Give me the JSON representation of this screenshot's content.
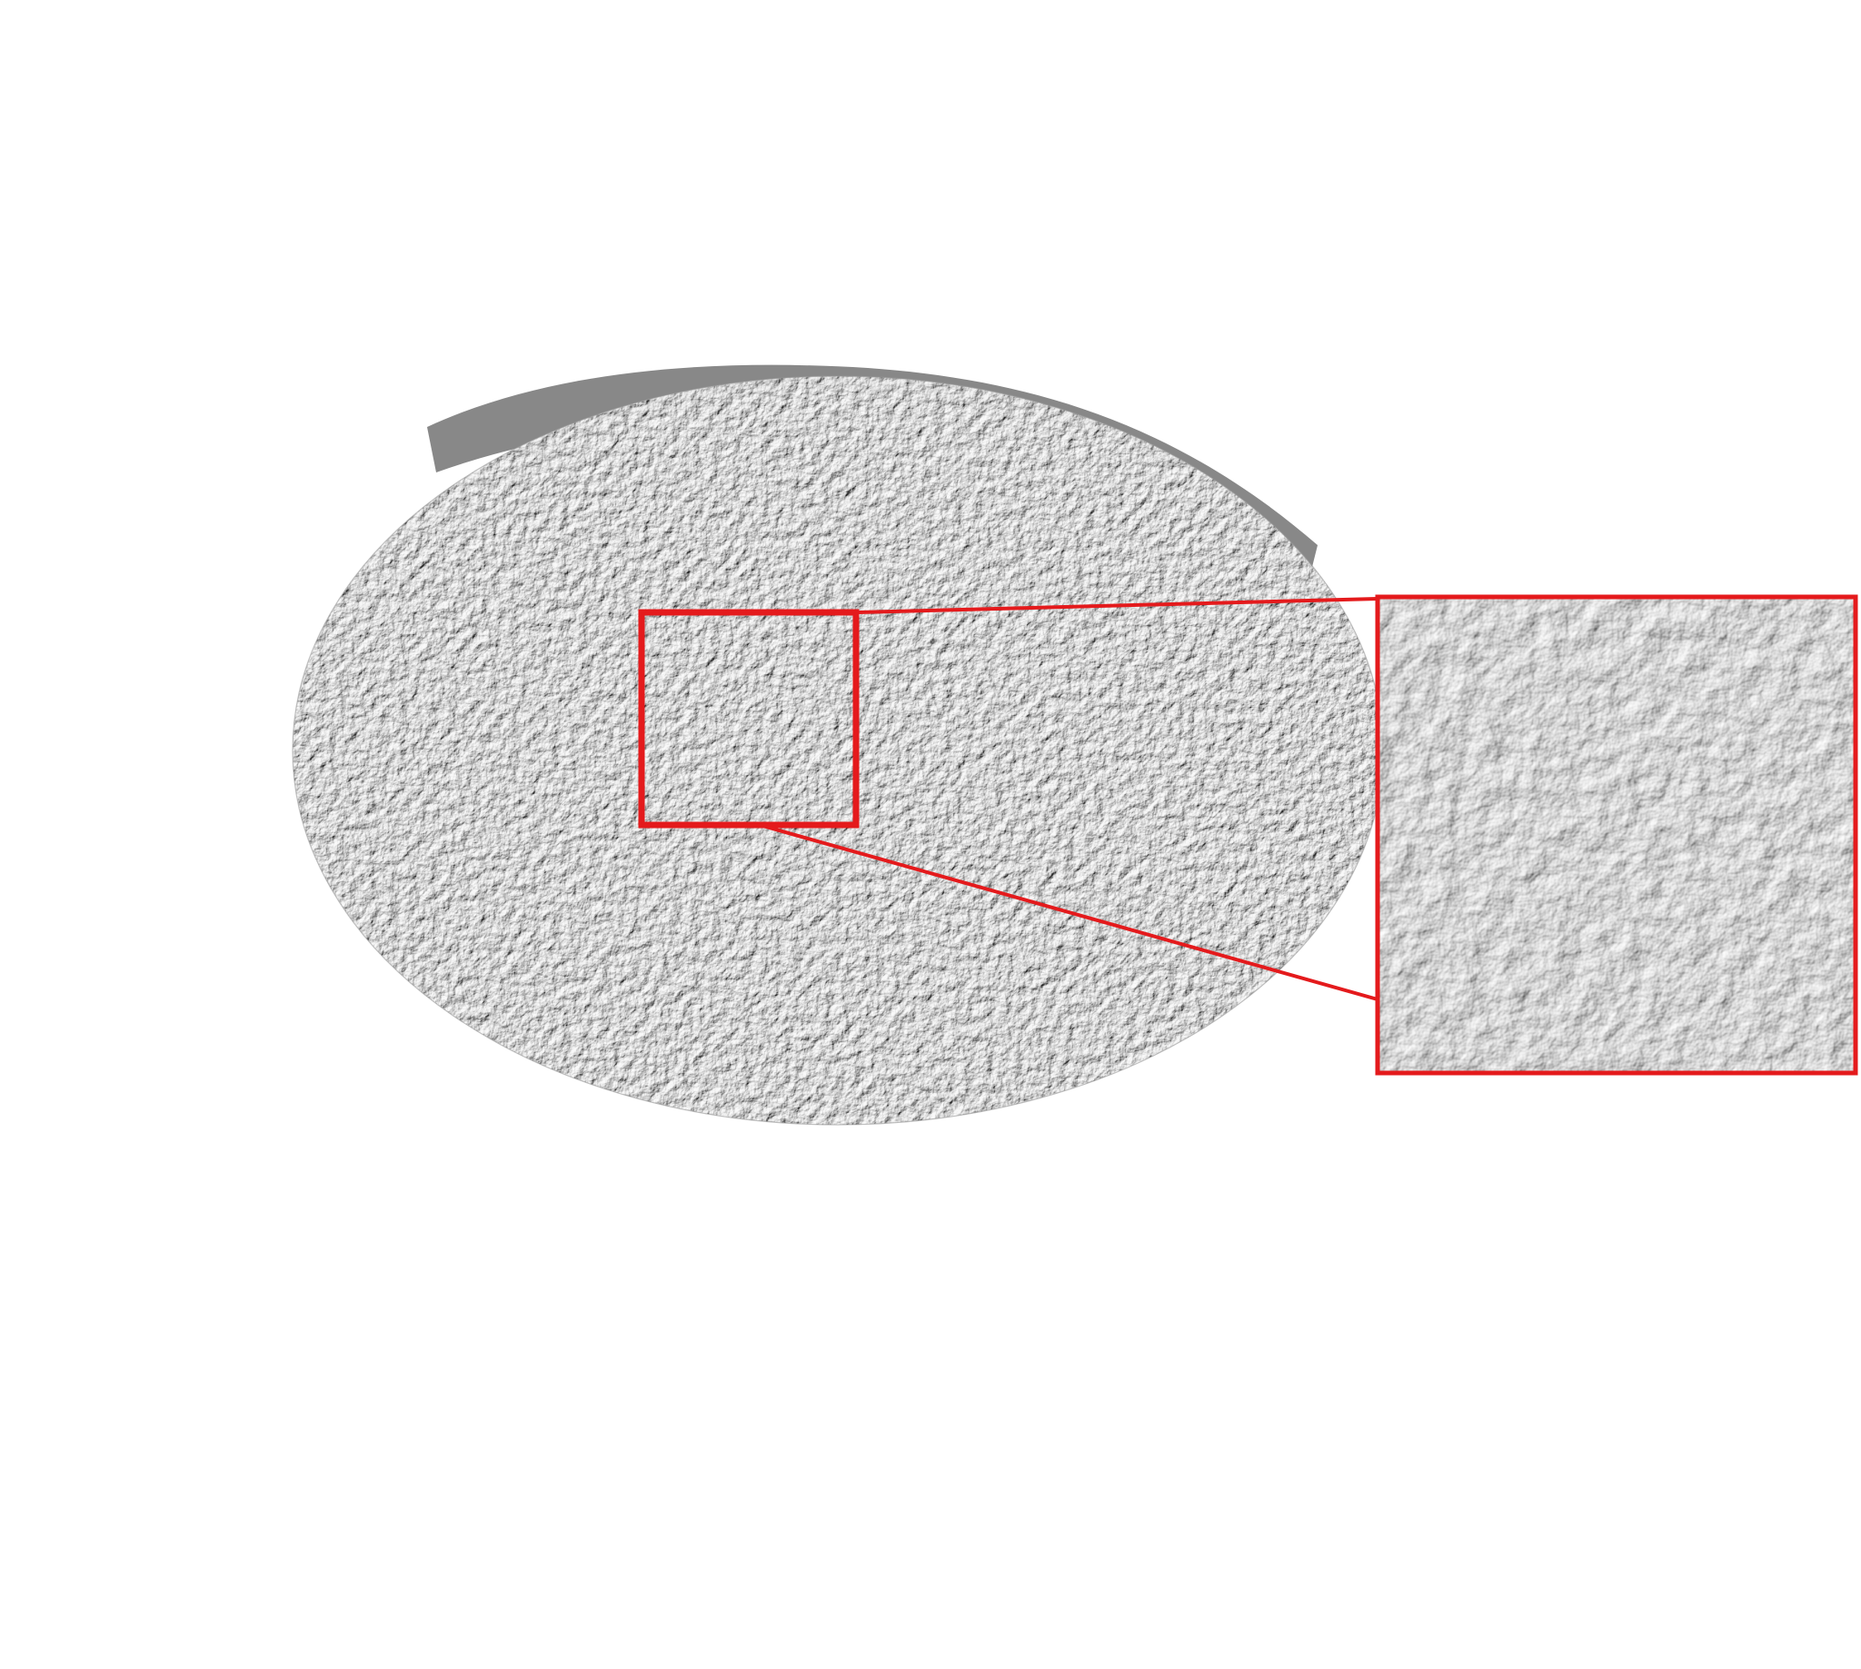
{
  "figure": {
    "subject": "textured-disc",
    "has_zoom_inset": true
  },
  "colors": {
    "background": "#ffffff",
    "highlight_box": "#e41a1c",
    "surface_light": "#f2f2f2",
    "surface_mid": "#c9c9c9",
    "surface_dark": "#3c3c3c"
  }
}
